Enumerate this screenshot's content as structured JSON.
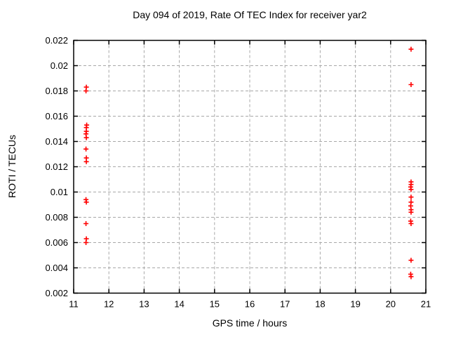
{
  "figure": {
    "background": "#ffffff"
  },
  "chart_data": {
    "type": "scatter",
    "title": "Day 094 of 2019, Rate Of TEC Index for receiver yar2",
    "xlabel": "GPS time / hours",
    "ylabel": "ROTI / TECUs",
    "xlim": [
      11,
      21
    ],
    "ylim": [
      0.002,
      0.022
    ],
    "xticks": {
      "values": [
        11,
        12,
        13,
        14,
        15,
        16,
        17,
        18,
        19,
        20,
        21
      ],
      "labels": [
        "11",
        "12",
        "13",
        "14",
        "15",
        "16",
        "17",
        "18",
        "19",
        "20",
        "21"
      ]
    },
    "yticks": {
      "values": [
        0.002,
        0.004,
        0.006,
        0.008,
        0.01,
        0.012,
        0.014,
        0.016,
        0.018,
        0.02,
        0.022
      ],
      "labels": [
        "0.002",
        "0.004",
        "0.006",
        "0.008",
        "0.01",
        "0.012",
        "0.014",
        "0.016",
        "0.018",
        "0.02",
        "0.022"
      ]
    },
    "grid": true,
    "grid_style": "dashed",
    "legend": "none",
    "marker": {
      "shape": "plus",
      "color": "#ff0000",
      "size": 7,
      "stroke_width": 1.6
    },
    "colors": {
      "grid": "#a8a8a8",
      "axis": "#000000",
      "text": "#000000",
      "background": "#ffffff"
    },
    "series": [
      {
        "name": "ROTI",
        "points": [
          [
            11.36,
            0.0183
          ],
          [
            11.35,
            0.018
          ],
          [
            11.37,
            0.0153
          ],
          [
            11.36,
            0.0151
          ],
          [
            11.36,
            0.0148
          ],
          [
            11.35,
            0.0146
          ],
          [
            11.36,
            0.0143
          ],
          [
            11.35,
            0.0134
          ],
          [
            11.36,
            0.0127
          ],
          [
            11.36,
            0.0124
          ],
          [
            11.35,
            0.0094
          ],
          [
            11.36,
            0.0092
          ],
          [
            11.35,
            0.0075
          ],
          [
            11.36,
            0.0063
          ],
          [
            11.35,
            0.006
          ],
          [
            20.58,
            0.0213
          ],
          [
            20.58,
            0.0185
          ],
          [
            20.58,
            0.0108
          ],
          [
            20.58,
            0.0106
          ],
          [
            20.57,
            0.0104
          ],
          [
            20.58,
            0.0102
          ],
          [
            20.58,
            0.0096
          ],
          [
            20.58,
            0.0092
          ],
          [
            20.57,
            0.0089
          ],
          [
            20.58,
            0.0086
          ],
          [
            20.58,
            0.0084
          ],
          [
            20.57,
            0.0077
          ],
          [
            20.58,
            0.0075
          ],
          [
            20.58,
            0.0046
          ],
          [
            20.57,
            0.0035
          ],
          [
            20.58,
            0.0033
          ]
        ]
      }
    ]
  }
}
